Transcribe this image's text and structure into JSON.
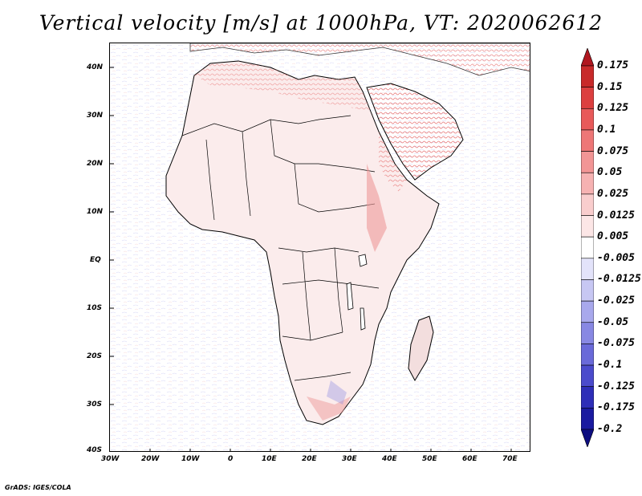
{
  "title": "Vertical velocity [m/s] at 1000hPa, VT: 2020062612",
  "footer": "GrADS: IGES/COLA",
  "map": {
    "lat_labels": [
      "40N",
      "30N",
      "20N",
      "10N",
      "EQ",
      "10S",
      "20S",
      "30S",
      "40S"
    ],
    "lon_labels": [
      "30W",
      "20W",
      "10W",
      "0",
      "10E",
      "20E",
      "30E",
      "40E",
      "50E",
      "60E",
      "70E"
    ]
  },
  "colorbar": {
    "labels": [
      "0.175",
      "0.15",
      "0.125",
      "0.1",
      "0.075",
      "0.05",
      "0.025",
      "0.0125",
      "0.005",
      "-0.005",
      "-0.0125",
      "-0.025",
      "-0.05",
      "-0.075",
      "-0.1",
      "-0.125",
      "-0.175",
      "-0.2"
    ],
    "colors": [
      "#b0171f",
      "#c82a2a",
      "#dc3f3f",
      "#e85a5a",
      "#ee7777",
      "#f29595",
      "#f6b2b2",
      "#f9cdcd",
      "#fce6e6",
      "#ffffff",
      "#e3e3fa",
      "#c7c7f3",
      "#a8a8ec",
      "#8888e3",
      "#6a6ad9",
      "#4b4bcc",
      "#2e2eb8",
      "#1a1aa0",
      "#0d0d80"
    ]
  }
}
